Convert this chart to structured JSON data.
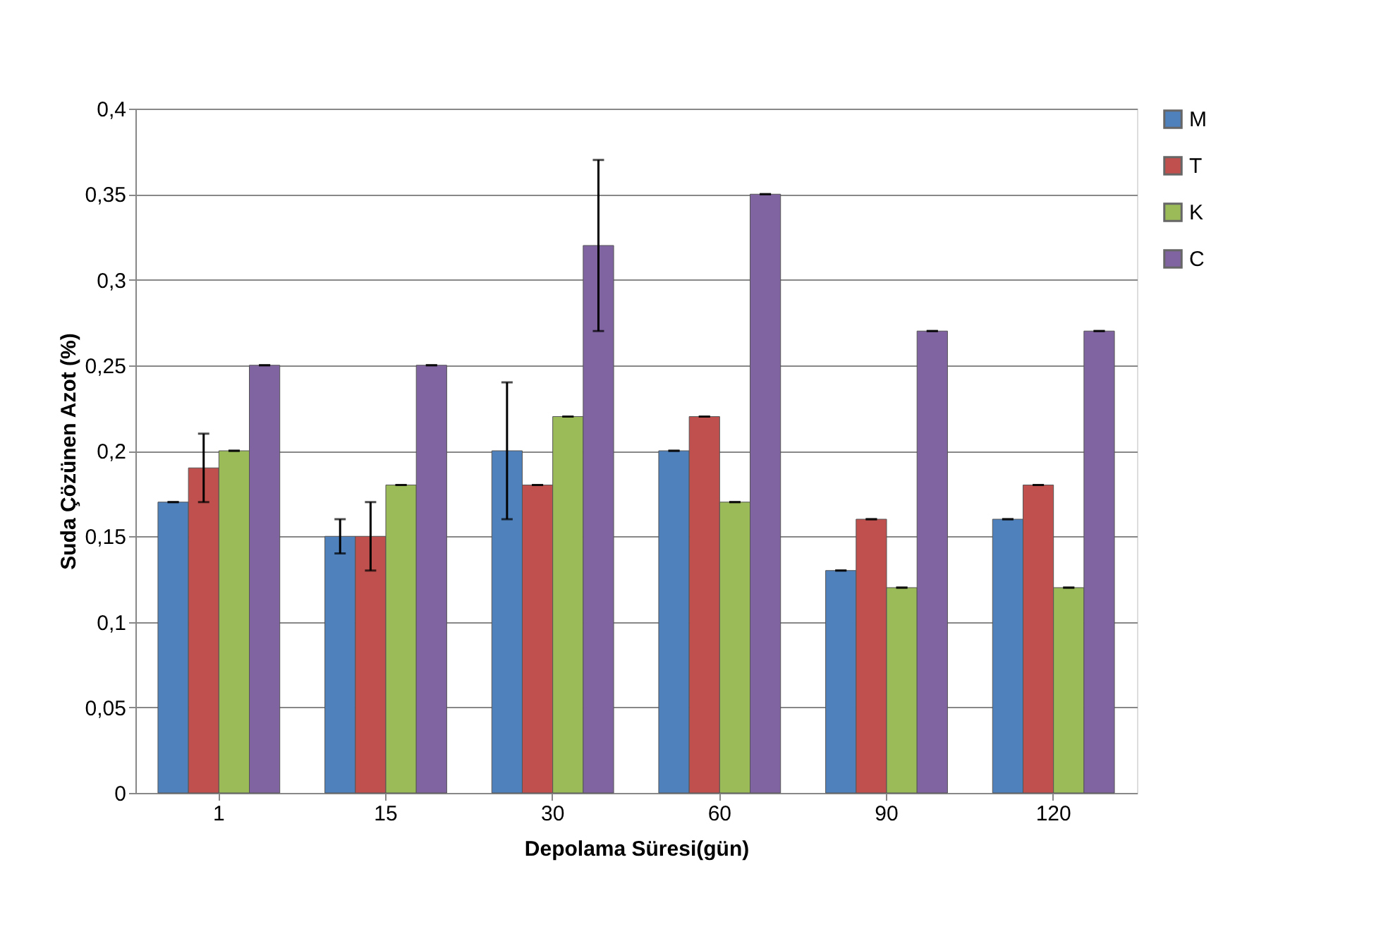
{
  "chart_data": {
    "type": "bar",
    "xlabel": "Depolama Süresi(gün)",
    "ylabel": "Suda Çözünen Azot (%)",
    "categories": [
      "1",
      "15",
      "30",
      "60",
      "90",
      "120"
    ],
    "series": [
      {
        "name": "M",
        "color": "#4f81bd",
        "values": [
          0.17,
          0.15,
          0.2,
          0.2,
          0.13,
          0.16
        ],
        "errors": [
          0,
          0.01,
          0.04,
          0,
          0,
          0
        ]
      },
      {
        "name": "T",
        "color": "#c0504d",
        "values": [
          0.19,
          0.15,
          0.18,
          0.22,
          0.16,
          0.18
        ],
        "errors": [
          0.02,
          0.02,
          0,
          0,
          0,
          0
        ]
      },
      {
        "name": "K",
        "color": "#9bbb59",
        "values": [
          0.2,
          0.18,
          0.22,
          0.17,
          0.12,
          0.12
        ],
        "errors": [
          0,
          0,
          0,
          0,
          0,
          0
        ]
      },
      {
        "name": "C",
        "color": "#8064a2",
        "values": [
          0.25,
          0.25,
          0.32,
          0.35,
          0.27,
          0.27
        ],
        "errors": [
          0,
          0,
          0.05,
          0,
          0,
          0
        ]
      }
    ],
    "ylim": [
      0,
      0.4
    ],
    "yticks": [
      {
        "value": 0,
        "label": "0"
      },
      {
        "value": 0.05,
        "label": "0,05"
      },
      {
        "value": 0.1,
        "label": "0,1"
      },
      {
        "value": 0.15,
        "label": "0,15"
      },
      {
        "value": 0.2,
        "label": "0,2"
      },
      {
        "value": 0.25,
        "label": "0,25"
      },
      {
        "value": 0.3,
        "label": "0,3"
      },
      {
        "value": 0.35,
        "label": "0,35"
      },
      {
        "value": 0.4,
        "label": "0,4"
      }
    ],
    "grid": "y",
    "legend": "right"
  }
}
